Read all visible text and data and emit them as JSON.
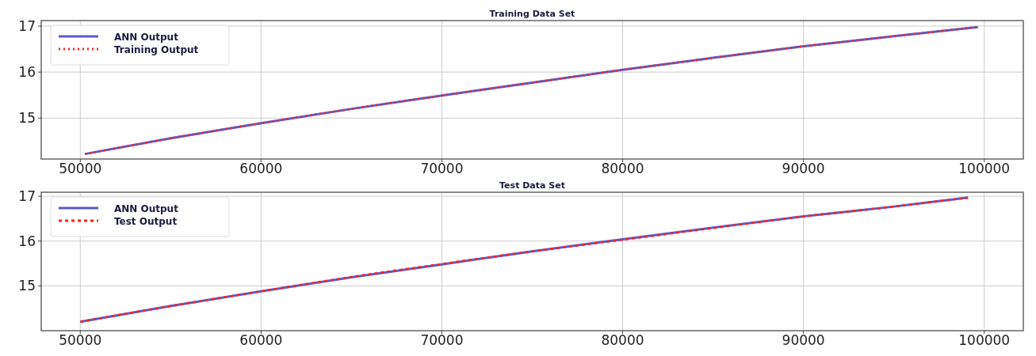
{
  "chart_data": [
    {
      "type": "line",
      "title": "Training Data Set",
      "x": [
        50260,
        55000,
        60000,
        65000,
        70000,
        75000,
        80000,
        85000,
        90000,
        95000,
        99650
      ],
      "series": [
        {
          "name": "ANN Output",
          "color": "#5b5bc8",
          "line_style": "solid",
          "values": [
            14.22,
            14.56,
            14.89,
            15.2,
            15.49,
            15.77,
            16.05,
            16.31,
            16.56,
            16.78,
            16.98
          ]
        },
        {
          "name": "Training Output",
          "color": "#ff2020",
          "line_style": "dotted",
          "values": [
            14.22,
            14.56,
            14.89,
            15.2,
            15.49,
            15.77,
            16.05,
            16.31,
            16.56,
            16.78,
            16.98
          ]
        }
      ],
      "xlim": [
        47840,
        102160
      ],
      "ylim": [
        14.11,
        17.12
      ],
      "xticks": [
        50000,
        60000,
        70000,
        80000,
        90000,
        100000
      ],
      "yticks": [
        15,
        16,
        17
      ],
      "grid": true,
      "legend": "top left"
    },
    {
      "type": "line",
      "title": "Test Data Set",
      "x": [
        50000,
        55000,
        60000,
        65000,
        70000,
        75000,
        80000,
        85000,
        90000,
        95000,
        99100
      ],
      "series": [
        {
          "name": "ANN Output",
          "color": "#5b5bc8",
          "line_style": "solid",
          "values": [
            14.2,
            14.55,
            14.88,
            15.19,
            15.48,
            15.77,
            16.04,
            16.3,
            16.55,
            16.77,
            16.97
          ]
        },
        {
          "name": "Test Output",
          "color": "#ff2020",
          "line_style": "dashed",
          "values": [
            14.2,
            14.55,
            14.88,
            15.2,
            15.49,
            15.77,
            16.03,
            16.29,
            16.55,
            16.77,
            16.97
          ]
        }
      ],
      "xlim": [
        47840,
        102160
      ],
      "ylim": [
        14.0,
        17.09
      ],
      "xticks": [
        50000,
        60000,
        70000,
        80000,
        90000,
        100000
      ],
      "yticks": [
        15,
        16,
        17
      ],
      "grid": true,
      "legend": "top left"
    }
  ]
}
